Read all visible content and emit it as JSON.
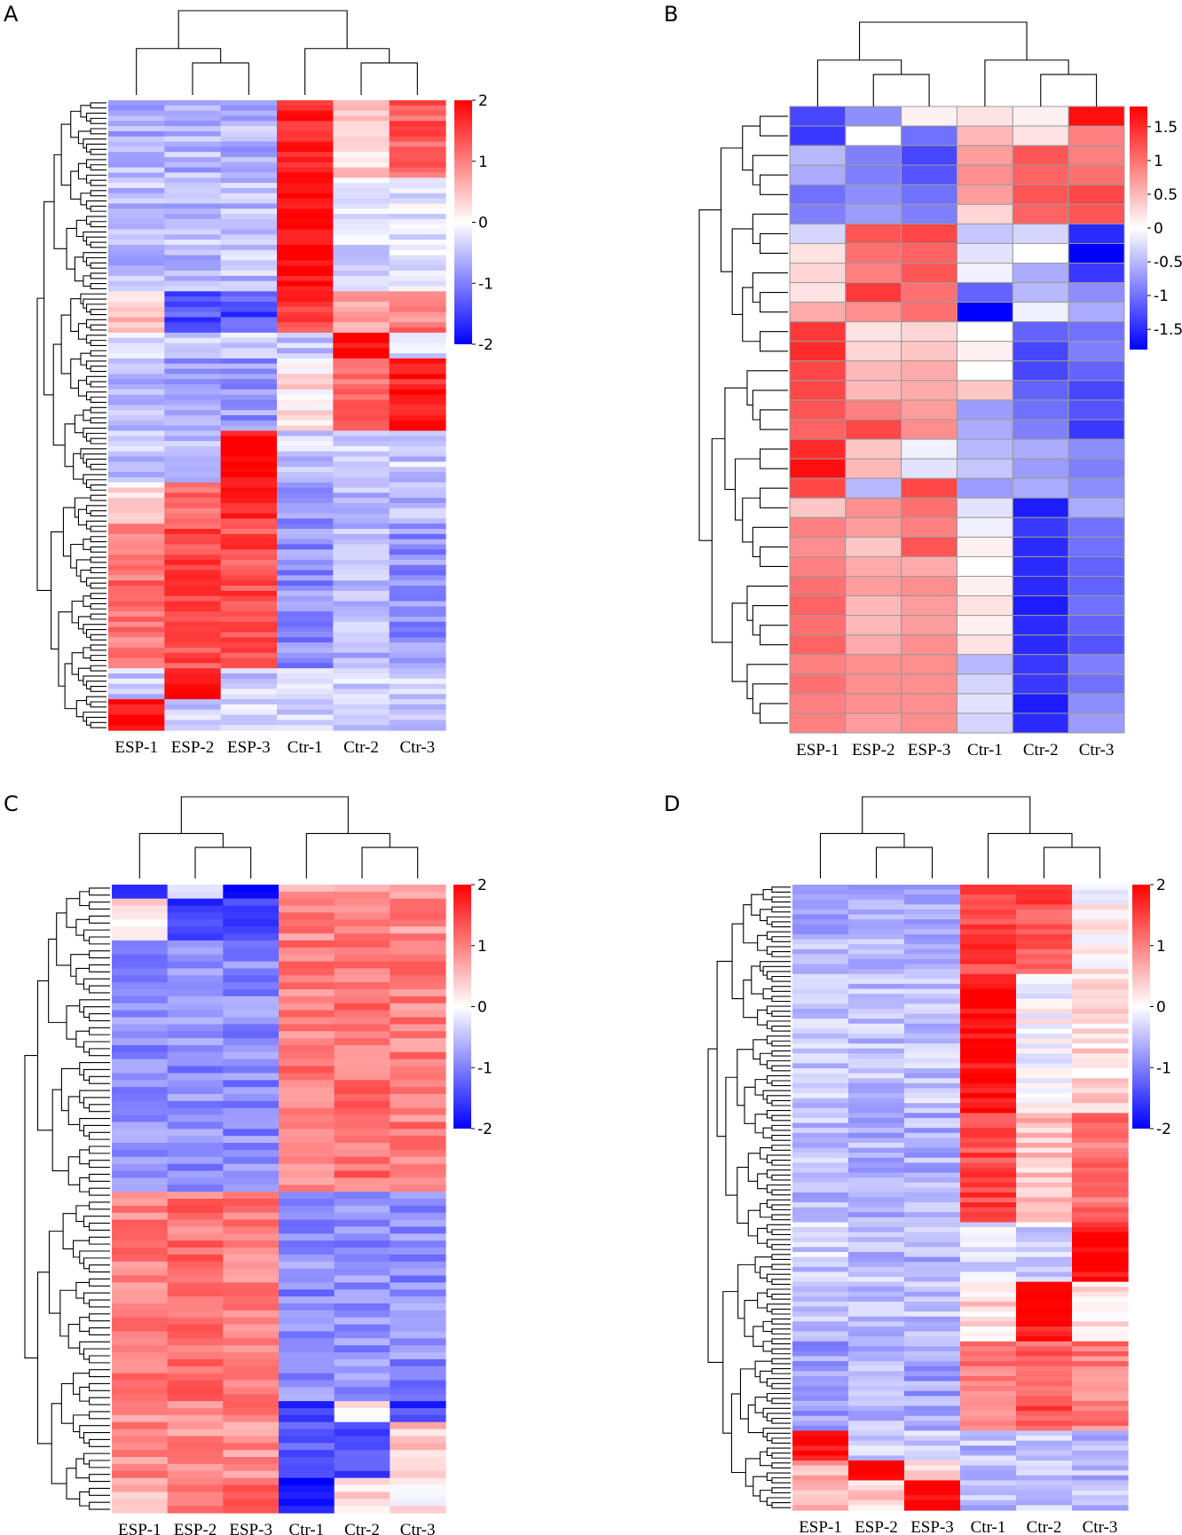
{
  "chart_data": [
    {
      "type": "heatmap",
      "panel_label": "A",
      "columns": [
        "ESP-1",
        "ESP-2",
        "ESP-3",
        "Ctr-1",
        "Ctr-2",
        "Ctr-3"
      ],
      "colorbar": {
        "ticks": [
          "2",
          "1",
          "0",
          "-1",
          "-2"
        ],
        "range": [
          -2,
          2
        ]
      },
      "row_clusters": [
        {
          "rows": 15,
          "values": [
            -0.6,
            -0.6,
            -0.6,
            1.8,
            0.4,
            1.3
          ]
        },
        {
          "rows": 22,
          "values": [
            -0.5,
            -0.5,
            -0.5,
            2.0,
            -0.3,
            -0.2
          ]
        },
        {
          "rows": 8,
          "values": [
            0.5,
            -1.4,
            -1.4,
            1.5,
            0.6,
            1.0
          ]
        },
        {
          "rows": 5,
          "values": [
            -0.4,
            -0.4,
            -0.4,
            -0.4,
            2.0,
            -0.4
          ]
        },
        {
          "rows": 14,
          "values": [
            -0.6,
            -0.8,
            -0.8,
            0.2,
            1.2,
            1.8
          ]
        },
        {
          "rows": 10,
          "values": [
            -0.4,
            -0.4,
            2.0,
            -0.4,
            -0.4,
            -0.4
          ]
        },
        {
          "rows": 8,
          "values": [
            0.3,
            1.1,
            1.6,
            -0.8,
            -0.6,
            -0.6
          ]
        },
        {
          "rows": 28,
          "values": [
            1.1,
            1.4,
            1.4,
            -0.9,
            -0.6,
            -0.9
          ]
        },
        {
          "rows": 6,
          "values": [
            -0.4,
            2.0,
            -0.4,
            -0.4,
            -0.4,
            -0.4
          ]
        },
        {
          "rows": 6,
          "values": [
            2.0,
            -0.4,
            -0.4,
            -0.4,
            -0.4,
            -0.4
          ]
        }
      ]
    },
    {
      "type": "heatmap",
      "panel_label": "B",
      "columns": [
        "ESP-1",
        "ESP-2",
        "ESP-3",
        "Ctr-1",
        "Ctr-2",
        "Ctr-3"
      ],
      "colorbar": {
        "ticks": [
          "1.5",
          "1",
          "0.5",
          "0",
          "-0.5",
          "-1",
          "-1.5"
        ],
        "range": [
          -1.8,
          1.8
        ]
      },
      "rows": [
        [
          -1.3,
          -0.8,
          0.1,
          0.2,
          0.1,
          1.7
        ],
        [
          -1.4,
          0.0,
          -1.0,
          0.5,
          0.2,
          0.9
        ],
        [
          -0.5,
          -0.9,
          -1.3,
          0.7,
          1.2,
          0.9
        ],
        [
          -0.6,
          -0.9,
          -1.2,
          0.8,
          1.1,
          1.0
        ],
        [
          -1.0,
          -0.8,
          -1.0,
          0.7,
          1.2,
          1.3
        ],
        [
          -0.9,
          -0.7,
          -0.9,
          0.3,
          1.1,
          1.2
        ],
        [
          -0.3,
          1.2,
          1.3,
          -0.4,
          -0.3,
          -1.5
        ],
        [
          0.2,
          1.0,
          1.1,
          -0.2,
          0.0,
          -1.8
        ],
        [
          0.3,
          0.9,
          1.2,
          -0.1,
          -0.6,
          -1.4
        ],
        [
          0.2,
          1.4,
          1.0,
          -1.1,
          -0.5,
          -0.8
        ],
        [
          0.6,
          0.8,
          1.0,
          -1.8,
          -0.1,
          -0.6
        ],
        [
          1.4,
          0.2,
          0.3,
          0.0,
          -1.1,
          -1.0
        ],
        [
          1.5,
          0.3,
          0.4,
          0.1,
          -1.3,
          -0.9
        ],
        [
          1.3,
          0.5,
          0.6,
          0.0,
          -1.3,
          -1.1
        ],
        [
          1.3,
          0.5,
          0.6,
          0.4,
          -1.1,
          -1.3
        ],
        [
          1.2,
          0.9,
          0.7,
          -0.7,
          -1.0,
          -1.2
        ],
        [
          1.1,
          1.3,
          0.8,
          -0.6,
          -0.9,
          -1.4
        ],
        [
          1.5,
          0.4,
          -0.1,
          -0.5,
          -0.6,
          -0.8
        ],
        [
          1.7,
          0.5,
          -0.2,
          -0.4,
          -0.7,
          -0.9
        ],
        [
          1.3,
          -0.5,
          1.3,
          -0.7,
          -0.6,
          -0.8
        ],
        [
          0.4,
          0.8,
          1.0,
          -0.2,
          -1.6,
          -0.6
        ],
        [
          0.9,
          0.7,
          0.9,
          -0.1,
          -1.4,
          -1.0
        ],
        [
          0.8,
          0.4,
          1.2,
          0.1,
          -1.5,
          -1.0
        ],
        [
          0.9,
          0.6,
          0.6,
          0.0,
          -1.5,
          -1.1
        ],
        [
          1.0,
          0.7,
          0.8,
          0.1,
          -1.5,
          -1.1
        ],
        [
          1.1,
          0.5,
          0.7,
          0.2,
          -1.6,
          -1.0
        ],
        [
          1.0,
          0.5,
          0.7,
          0.1,
          -1.5,
          -1.1
        ],
        [
          1.1,
          0.6,
          0.8,
          0.2,
          -1.5,
          -1.2
        ],
        [
          0.9,
          0.8,
          0.8,
          -0.5,
          -1.4,
          -0.9
        ],
        [
          1.0,
          0.8,
          0.8,
          -0.3,
          -1.4,
          -1.0
        ],
        [
          0.9,
          0.8,
          0.8,
          -0.2,
          -1.6,
          -0.8
        ],
        [
          0.9,
          0.7,
          0.8,
          -0.3,
          -1.5,
          -0.7
        ]
      ]
    },
    {
      "type": "heatmap",
      "panel_label": "C",
      "columns": [
        "ESP-1",
        "ESP-2",
        "ESP-3",
        "Ctr-1",
        "Ctr-2",
        "Ctr-3"
      ],
      "colorbar": {
        "ticks": [
          "2",
          "1",
          "0",
          "-1",
          "-2"
        ],
        "range": [
          -2,
          2
        ]
      },
      "row_clusters": [
        {
          "rows": 2,
          "values": [
            -1.5,
            -0.3,
            -1.8,
            0.8,
            0.9,
            0.9
          ]
        },
        {
          "rows": 6,
          "values": [
            0.3,
            -1.5,
            -1.3,
            0.9,
            1.0,
            0.9
          ]
        },
        {
          "rows": 36,
          "values": [
            -0.9,
            -0.9,
            -0.9,
            1.0,
            1.1,
            1.0
          ]
        },
        {
          "rows": 30,
          "values": [
            1.0,
            1.1,
            1.0,
            -0.9,
            -0.9,
            -0.9
          ]
        },
        {
          "rows": 3,
          "values": [
            0.8,
            1.0,
            1.1,
            -1.5,
            0.3,
            -1.5
          ]
        },
        {
          "rows": 8,
          "values": [
            0.9,
            0.9,
            0.9,
            -1.3,
            -1.3,
            0.5
          ]
        },
        {
          "rows": 5,
          "values": [
            0.6,
            1.2,
            1.4,
            -2.0,
            0.4,
            0.2
          ]
        }
      ]
    },
    {
      "type": "heatmap",
      "panel_label": "D",
      "columns": [
        "ESP-1",
        "ESP-2",
        "ESP-3",
        "Ctr-1",
        "Ctr-2",
        "Ctr-3"
      ],
      "colorbar": {
        "ticks": [
          "2",
          "1",
          "0",
          "-1",
          "-2"
        ],
        "range": [
          -2,
          2
        ]
      },
      "row_clusters": [
        {
          "rows": 18,
          "values": [
            -0.6,
            -0.6,
            -0.6,
            1.5,
            1.4,
            0.1
          ]
        },
        {
          "rows": 28,
          "values": [
            -0.5,
            -0.5,
            -0.5,
            2.0,
            0.0,
            0.3
          ]
        },
        {
          "rows": 22,
          "values": [
            -0.5,
            -0.6,
            -0.6,
            1.4,
            0.5,
            1.1
          ]
        },
        {
          "rows": 12,
          "values": [
            -0.4,
            -0.5,
            -0.6,
            -0.2,
            -0.3,
            1.9
          ]
        },
        {
          "rows": 12,
          "values": [
            -0.4,
            -0.5,
            -0.5,
            0.3,
            1.9,
            0.3
          ]
        },
        {
          "rows": 18,
          "values": [
            -0.8,
            -0.6,
            -0.7,
            1.0,
            1.3,
            1.0
          ]
        },
        {
          "rows": 6,
          "values": [
            2.0,
            -0.3,
            -0.3,
            -0.5,
            -0.5,
            -0.5
          ]
        },
        {
          "rows": 4,
          "values": [
            0.6,
            2.0,
            0.4,
            -0.5,
            -0.5,
            -0.5
          ]
        },
        {
          "rows": 6,
          "values": [
            0.6,
            0.4,
            2.0,
            -0.5,
            -0.5,
            -0.5
          ]
        }
      ]
    }
  ]
}
